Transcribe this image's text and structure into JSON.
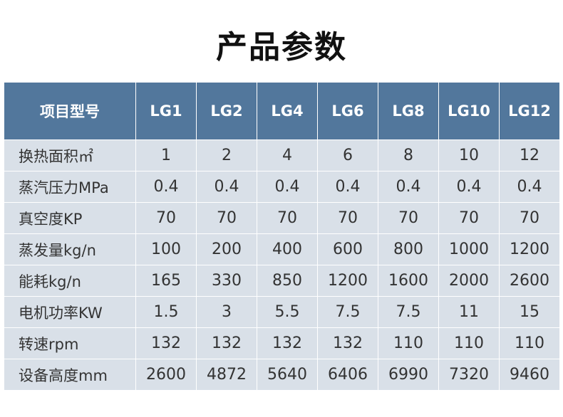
{
  "title": "产品参数",
  "table": {
    "headers": [
      "项目型号",
      "LG1",
      "LG2",
      "LG4",
      "LG6",
      "LG8",
      "LG10",
      "LG12"
    ],
    "rows": [
      [
        "换热面积㎡",
        "1",
        "2",
        "4",
        "6",
        "8",
        "10",
        "12"
      ],
      [
        "蒸汽压力MPa",
        "0.4",
        "0.4",
        "0.4",
        "0.4",
        "0.4",
        "0.4",
        "0.4"
      ],
      [
        "真空度KP",
        "70",
        "70",
        "70",
        "70",
        "70",
        "70",
        "70"
      ],
      [
        "蒸发量kg/n",
        "100",
        "200",
        "400",
        "600",
        "800",
        "1000",
        "1200"
      ],
      [
        "能耗kg/n",
        "165",
        "330",
        "850",
        "1200",
        "1600",
        "2000",
        "2600"
      ],
      [
        "电机功率KW",
        "1.5",
        "3",
        "5.5",
        "7.5",
        "7.5",
        "11",
        "15"
      ],
      [
        "转速rpm",
        "132",
        "132",
        "132",
        "132",
        "110",
        "110",
        "110"
      ],
      [
        "设备高度mm",
        "2600",
        "4872",
        "5640",
        "6406",
        "6990",
        "7320",
        "9460"
      ]
    ]
  },
  "colors": {
    "header_bg": "#52779c",
    "row_bg": "#d9e0e8"
  }
}
